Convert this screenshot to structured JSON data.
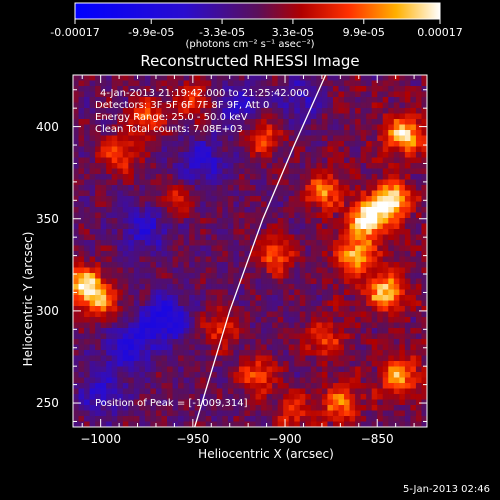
{
  "colorbar": {
    "tick_labels": [
      "-0.00017",
      "-9.9e-05",
      "-3.3e-05",
      "3.3e-05",
      "9.9e-05",
      "0.00017"
    ],
    "units_label": "(photons cm⁻² s⁻¹ asec⁻²)",
    "range": [
      -0.00017,
      0.00017
    ]
  },
  "plot": {
    "time_range": "4-Jan-2013 21:19:42.000 to 21:25:42.000",
    "detectors": "Detectors: 3F 5F 6F 7F 8F 9F, Att 0",
    "energy_range": "Energy Range: 25.0 - 50.0 keV",
    "clean_counts": "Clean    Total counts: 7.08E+03",
    "peak_position": "Position of Peak = [-1009,314]"
  },
  "footer": {
    "timestamp": "5-Jan-2013 02:46"
  },
  "colors": {
    "background": "#000000",
    "text": "#ffffff",
    "limb": "#ffffff"
  },
  "chart_data": {
    "type": "heatmap",
    "title": "Reconstructed RHESSI Image",
    "xlabel": "Heliocentric X (arcsec)",
    "ylabel": "Heliocentric Y (arcsec)",
    "xlim": [
      -1015,
      -823
    ],
    "ylim": [
      237,
      428
    ],
    "xticks": [
      -1000,
      -950,
      -900,
      -850
    ],
    "yticks": [
      250,
      300,
      350,
      400
    ],
    "xtick_labels": [
      "−1000",
      "−950",
      "−900",
      "−850"
    ],
    "ytick_labels": [
      "250",
      "300",
      "350",
      "400"
    ],
    "colormap": "blue-purple-red-yellow-white",
    "limb_arc": {
      "x": [
        -949,
        -930,
        -912,
        -895,
        -878
      ],
      "y": [
        237,
        300,
        350,
        390,
        428
      ]
    },
    "peak": {
      "x": -1009,
      "y": 314
    },
    "hot_regions": [
      {
        "x": -855,
        "y": 350,
        "strength": 1.0
      },
      {
        "x": -842,
        "y": 360,
        "strength": 0.9
      },
      {
        "x": -862,
        "y": 330,
        "strength": 0.75
      },
      {
        "x": -835,
        "y": 395,
        "strength": 0.85
      },
      {
        "x": -845,
        "y": 310,
        "strength": 0.8
      },
      {
        "x": -880,
        "y": 365,
        "strength": 0.6
      },
      {
        "x": -838,
        "y": 265,
        "strength": 0.7
      },
      {
        "x": -870,
        "y": 250,
        "strength": 0.55
      },
      {
        "x": -1009,
        "y": 314,
        "strength": 0.9
      },
      {
        "x": -1000,
        "y": 305,
        "strength": 0.55
      },
      {
        "x": -990,
        "y": 385,
        "strength": 0.55
      },
      {
        "x": -975,
        "y": 405,
        "strength": 0.5
      },
      {
        "x": -950,
        "y": 415,
        "strength": 0.45
      },
      {
        "x": -912,
        "y": 395,
        "strength": 0.55
      },
      {
        "x": -905,
        "y": 330,
        "strength": 0.55
      },
      {
        "x": -935,
        "y": 290,
        "strength": 0.45
      },
      {
        "x": -915,
        "y": 265,
        "strength": 0.55
      },
      {
        "x": -880,
        "y": 285,
        "strength": 0.5
      },
      {
        "x": -895,
        "y": 245,
        "strength": 0.45
      },
      {
        "x": -960,
        "y": 360,
        "strength": 0.4
      }
    ],
    "cold_regions": [
      {
        "x": -965,
        "y": 295,
        "strength": 1.0
      },
      {
        "x": -985,
        "y": 280,
        "strength": 0.8
      },
      {
        "x": -945,
        "y": 380,
        "strength": 0.7
      },
      {
        "x": -975,
        "y": 345,
        "strength": 0.7
      },
      {
        "x": -1000,
        "y": 255,
        "strength": 0.6
      },
      {
        "x": -925,
        "y": 410,
        "strength": 0.6
      },
      {
        "x": -890,
        "y": 415,
        "strength": 0.5
      }
    ]
  }
}
